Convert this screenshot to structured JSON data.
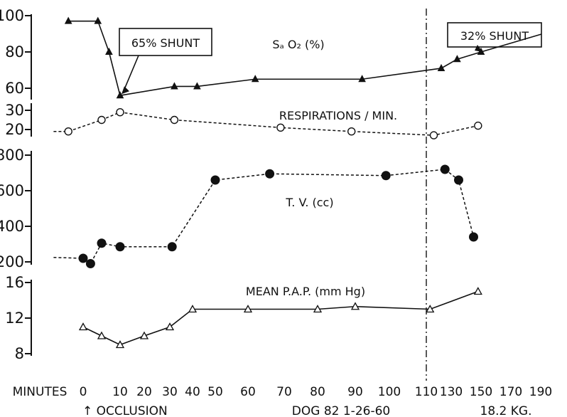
{
  "chart_data": {
    "type": "line",
    "x_axis": {
      "label": "MINUTES",
      "tick_labels": [
        "0",
        "10",
        "20",
        "30",
        "40",
        "50",
        "60",
        "70",
        "80",
        "90",
        "100",
        "110",
        "130",
        "150",
        "170",
        "190"
      ]
    },
    "footer": {
      "left": "↑ OCCLUSION",
      "center": "DOG 82 1-26-60",
      "right": "18.2 KG."
    },
    "vertical_marker_x": 110,
    "panels": [
      {
        "name": "SaO2 (%)",
        "label": "Sₐ O₂ (%)",
        "y_ticks": [
          "100",
          "80",
          "60"
        ],
        "ylim": [
          50,
          100
        ],
        "line": "solid",
        "marker": "filled-triangle",
        "x": [
          -4,
          4,
          7,
          10,
          32,
          42,
          62,
          92,
          122,
          134,
          150
        ],
        "y": [
          97,
          97,
          80,
          56,
          61,
          61,
          65,
          65,
          71,
          76,
          80
        ],
        "annotations": [
          {
            "text": "65% SHUNT",
            "x": 10,
            "y": 56
          },
          {
            "text": "32% SHUNT",
            "x": 150,
            "y": 80
          }
        ]
      },
      {
        "name": "RESPIRATIONS / MIN.",
        "label": "RESPIRATIONS / MIN.",
        "y_ticks": [
          "30",
          "20"
        ],
        "ylim": [
          15,
          32
        ],
        "line": "dashed",
        "marker": "open-circle",
        "x": [
          -4,
          5,
          10,
          32,
          69,
          89,
          116,
          148
        ],
        "y": [
          19,
          25,
          29,
          25,
          21,
          19,
          17,
          22
        ],
        "start_x": -8,
        "start_y": 19
      },
      {
        "name": "T.V. (cc)",
        "label": "T. V. (cc)",
        "y_ticks": [
          "800",
          "600",
          "400",
          "200"
        ],
        "ylim": [
          200,
          800
        ],
        "line": "dashed",
        "marker": "filled-circle",
        "x": [
          0,
          2,
          5,
          10,
          31,
          50,
          66,
          99,
          125,
          135,
          145
        ],
        "y": [
          220,
          190,
          305,
          285,
          285,
          660,
          695,
          685,
          720,
          660,
          340
        ],
        "start_x": -8,
        "start_y": 225
      },
      {
        "name": "MEAN P.A.P. (mmHg)",
        "label": "MEAN P.A.P. (mm Hg)",
        "y_ticks": [
          "16",
          "12",
          "8"
        ],
        "ylim": [
          8,
          16
        ],
        "line": "solid",
        "marker": "open-triangle",
        "x": [
          0,
          5,
          10,
          20,
          30,
          40,
          60,
          80,
          90,
          113,
          148
        ],
        "y": [
          11,
          10,
          9,
          10,
          11,
          13,
          13,
          13,
          13.3,
          13,
          15
        ]
      }
    ]
  }
}
